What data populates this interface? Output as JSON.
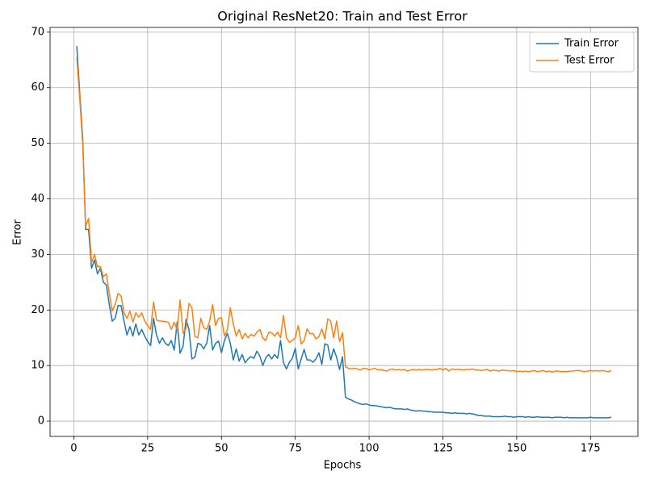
{
  "chart_data": {
    "type": "line",
    "title": "Original ResNet20: Train and Test Error",
    "x_label": "Epochs",
    "y_label": "Error",
    "x": [
      1,
      2,
      3,
      4,
      5,
      6,
      7,
      8,
      9,
      10,
      11,
      12,
      13,
      14,
      15,
      16,
      17,
      18,
      19,
      20,
      21,
      22,
      23,
      24,
      25,
      26,
      27,
      28,
      29,
      30,
      31,
      32,
      33,
      34,
      35,
      36,
      37,
      38,
      39,
      40,
      41,
      42,
      43,
      44,
      45,
      46,
      47,
      48,
      49,
      50,
      51,
      52,
      53,
      54,
      55,
      56,
      57,
      58,
      59,
      60,
      61,
      62,
      63,
      64,
      65,
      66,
      67,
      68,
      69,
      70,
      71,
      72,
      73,
      74,
      75,
      76,
      77,
      78,
      79,
      80,
      81,
      82,
      83,
      84,
      85,
      86,
      87,
      88,
      89,
      90,
      91,
      92,
      93,
      94,
      95,
      96,
      97,
      98,
      99,
      100,
      101,
      102,
      103,
      104,
      105,
      106,
      107,
      108,
      109,
      110,
      111,
      112,
      113,
      114,
      115,
      116,
      117,
      118,
      119,
      120,
      121,
      122,
      123,
      124,
      125,
      126,
      127,
      128,
      129,
      130,
      131,
      132,
      133,
      134,
      135,
      136,
      137,
      138,
      139,
      140,
      141,
      142,
      143,
      144,
      145,
      146,
      147,
      148,
      149,
      150,
      151,
      152,
      153,
      154,
      155,
      156,
      157,
      158,
      159,
      160,
      161,
      162,
      163,
      164,
      165,
      166,
      167,
      168,
      169,
      170,
      171,
      172,
      173,
      174,
      175,
      176,
      177,
      178,
      179,
      180,
      181,
      182
    ],
    "series": [
      {
        "name": "Train Error",
        "color": "#1f77b4",
        "values": [
          67.5,
          59,
          51,
          34.5,
          34.5,
          27.5,
          29,
          26.5,
          27.5,
          25,
          24.5,
          21,
          18,
          18.5,
          20.8,
          20.8,
          18,
          15.5,
          17,
          15.3,
          17.5,
          15.5,
          16.5,
          15.3,
          14.3,
          13.6,
          18.5,
          15.5,
          14,
          15,
          14,
          13.6,
          14.5,
          12.8,
          17.8,
          12.2,
          13.5,
          18.3,
          16.5,
          11.2,
          11.5,
          14,
          13.8,
          13,
          14,
          17.2,
          12.8,
          14,
          14.4,
          12.3,
          14.5,
          15.8,
          14,
          11,
          13,
          10.8,
          12,
          10.5,
          11.2,
          11.6,
          11.3,
          12.6,
          11.7,
          10,
          11.4,
          12,
          11.2,
          12,
          11.3,
          14.5,
          10.5,
          9.4,
          10.6,
          11.3,
          13.1,
          9.4,
          11.2,
          12.9,
          11,
          11,
          10.6,
          11.2,
          12.3,
          10.2,
          13.9,
          13.7,
          11,
          13,
          11.5,
          9.3,
          11.6,
          4.3,
          4.0,
          3.8,
          3.5,
          3.3,
          3.1,
          3.0,
          3.1,
          2.9,
          2.8,
          2.8,
          2.7,
          2.6,
          2.5,
          2.4,
          2.5,
          2.3,
          2.2,
          2.2,
          2.2,
          2.1,
          2.2,
          2.0,
          1.9,
          1.8,
          1.9,
          1.8,
          1.8,
          1.7,
          1.7,
          1.6,
          1.6,
          1.6,
          1.6,
          1.5,
          1.5,
          1.4,
          1.5,
          1.4,
          1.4,
          1.4,
          1.3,
          1.4,
          1.3,
          1.2,
          1.0,
          1.0,
          0.9,
          0.9,
          0.9,
          0.8,
          0.8,
          0.8,
          0.8,
          0.9,
          0.8,
          0.8,
          0.7,
          0.8,
          0.8,
          0.8,
          0.7,
          0.8,
          0.7,
          0.7,
          0.8,
          0.7,
          0.7,
          0.7,
          0.7,
          0.6,
          0.7,
          0.7,
          0.7,
          0.6,
          0.7,
          0.6,
          0.6,
          0.6,
          0.6,
          0.6,
          0.6,
          0.6,
          0.7,
          0.6,
          0.6,
          0.6,
          0.6,
          0.6,
          0.6,
          0.7
        ]
      },
      {
        "name": "Test Error",
        "color": "#ff7f0e",
        "values": [
          65.5,
          58,
          50,
          35,
          36.5,
          28.5,
          30,
          27.8,
          27.8,
          26,
          26.5,
          23,
          19.8,
          21,
          23,
          22.5,
          19.5,
          18.5,
          19.8,
          17.8,
          19.5,
          18.7,
          19.5,
          18,
          17.2,
          16.5,
          21.4,
          18.2,
          18,
          18,
          17.9,
          17.8,
          16.5,
          17.8,
          16.4,
          21.8,
          15.8,
          16.7,
          21.2,
          20.4,
          15.2,
          15,
          18.5,
          16.8,
          16.5,
          18,
          21,
          17.2,
          18.5,
          18.6,
          15.3,
          16.5,
          20.4,
          17.5,
          15.3,
          16.5,
          14.8,
          15.8,
          15,
          15.6,
          15.3,
          16,
          16.5,
          15,
          14.5,
          16,
          15.9,
          15.3,
          16,
          15,
          19,
          15,
          14.2,
          14.5,
          15,
          17.2,
          13.9,
          14.5,
          16.6,
          15.7,
          15.8,
          14.8,
          15.2,
          16.6,
          14.8,
          18.4,
          18,
          15,
          18,
          14.3,
          15.9,
          9.8,
          9.5,
          9.4,
          9.5,
          9.4,
          9.2,
          9.5,
          9.5,
          9.2,
          9.4,
          9.5,
          9.2,
          9.3,
          9.1,
          9.0,
          9.3,
          9.4,
          9.2,
          9.3,
          9.2,
          9.3,
          9.0,
          9.2,
          9.3,
          9.2,
          9.3,
          9.2,
          9.3,
          9.3,
          9.2,
          9.3,
          9.3,
          9.5,
          9.2,
          9.5,
          9.0,
          9.4,
          9.3,
          9.3,
          9.3,
          9.2,
          9.3,
          9.3,
          9.4,
          9.2,
          9.2,
          9.1,
          9.2,
          9.3,
          9.0,
          9.2,
          9.1,
          9.0,
          9.2,
          9.1,
          9.1,
          9.0,
          9.1,
          8.9,
          9.0,
          8.9,
          9.0,
          8.9,
          9.0,
          9.1,
          8.9,
          9.0,
          9.1,
          8.9,
          9.0,
          8.8,
          9.0,
          9.0,
          8.9,
          8.9,
          8.9,
          9.0,
          9.0,
          9.1,
          9.1,
          9.0,
          8.9,
          9.0,
          9.1,
          9.0,
          9.1,
          9.0,
          9.1,
          9.0,
          8.9,
          9.1
        ]
      }
    ],
    "xlim": [
      -8.05,
      191.05
    ],
    "xticks": [
      0,
      25,
      50,
      75,
      100,
      125,
      150,
      175
    ],
    "ylim": [
      -2.75,
      70.85
    ],
    "yticks": [
      0,
      10,
      20,
      30,
      40,
      50,
      60,
      70
    ],
    "grid": true,
    "legend": "upper right"
  }
}
